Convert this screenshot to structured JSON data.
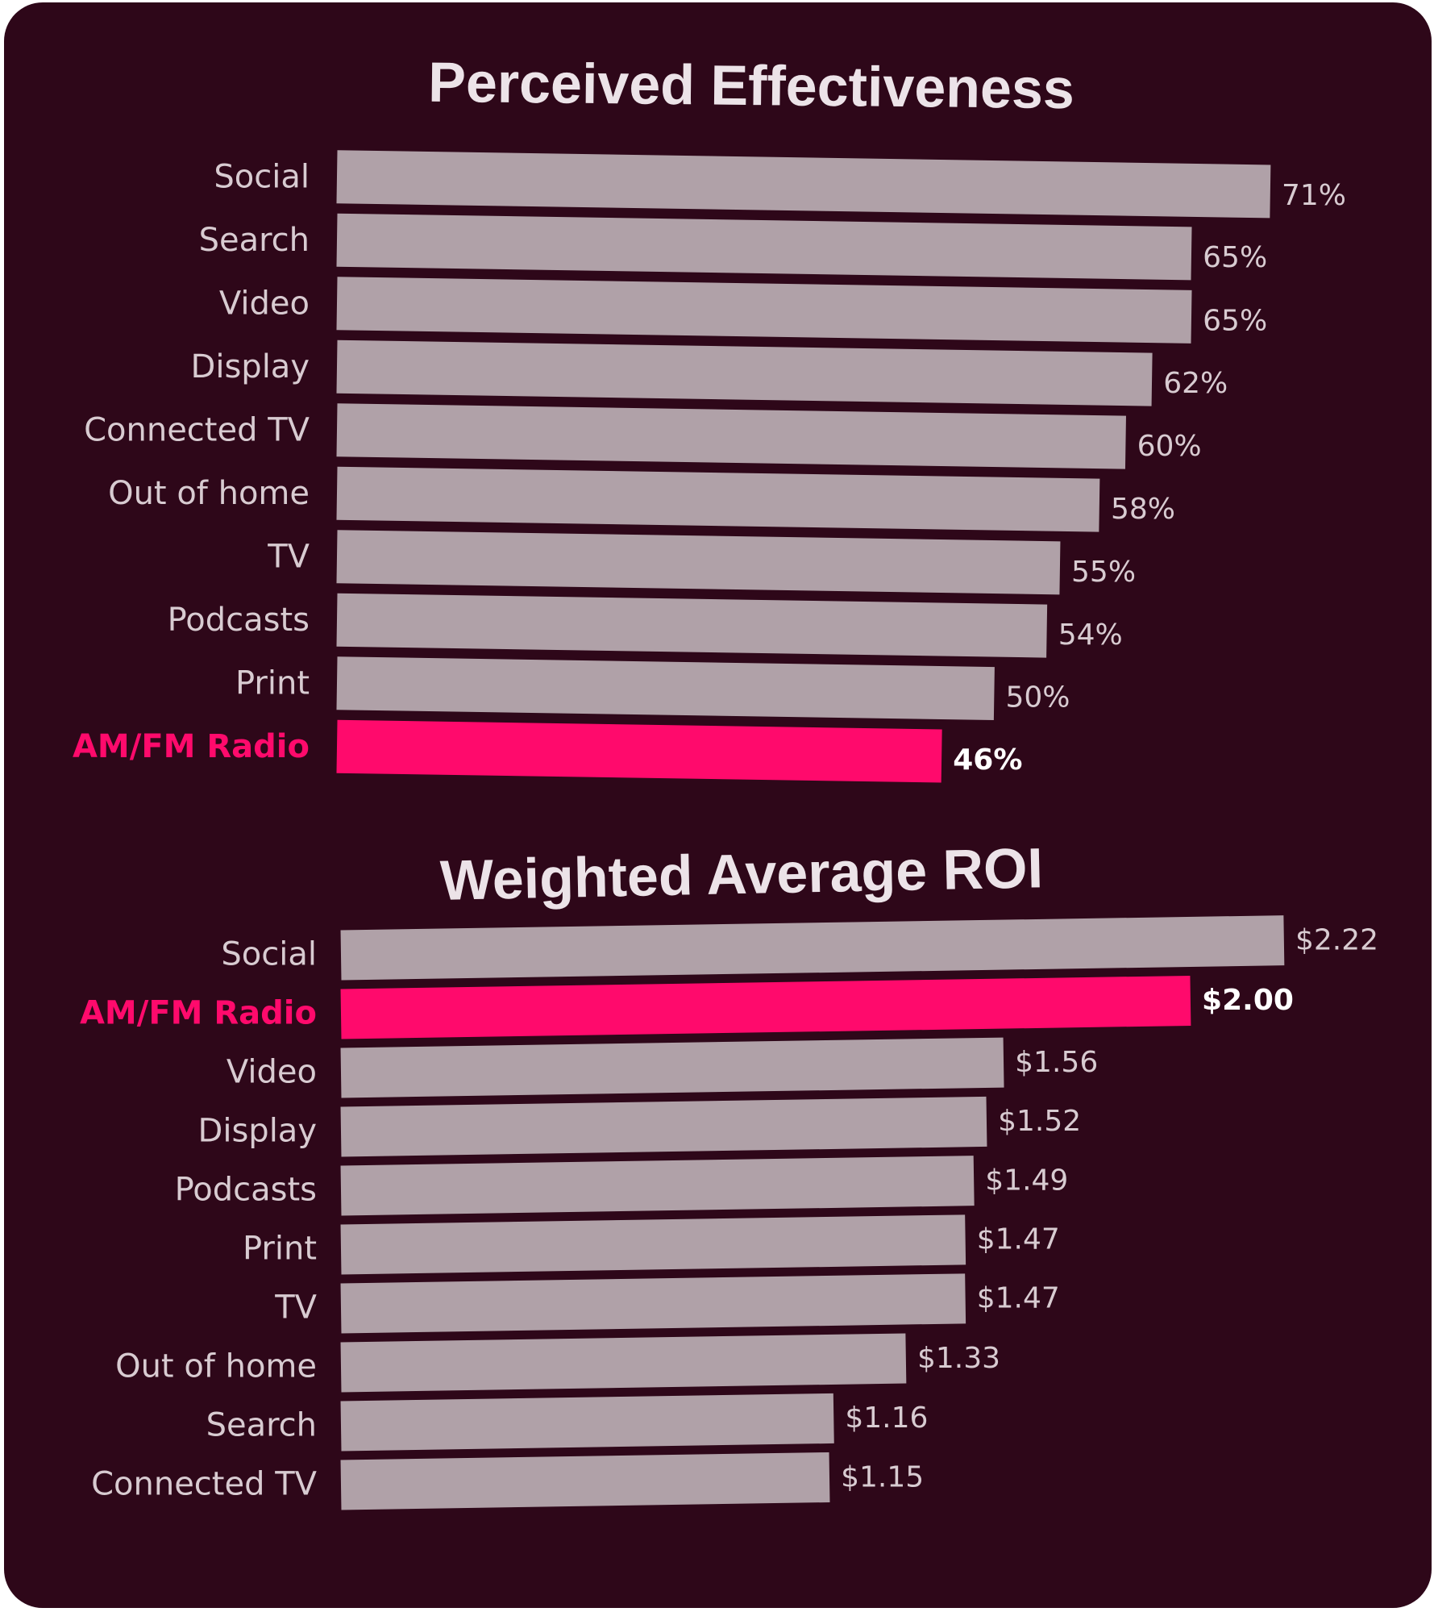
{
  "colors": {
    "background": "#2e0719",
    "bar": "#b0a1a8",
    "highlight": "#ff0a6c",
    "label": "#d8cbd1"
  },
  "chart_data": [
    {
      "type": "bar",
      "orientation": "horizontal",
      "title": "Perceived Effectiveness",
      "categories": [
        "Social",
        "Search",
        "Video",
        "Display",
        "Connected TV",
        "Out of home",
        "TV",
        "Podcasts",
        "Print",
        "AM/FM Radio"
      ],
      "values": [
        71,
        65,
        65,
        62,
        60,
        58,
        55,
        54,
        50,
        46
      ],
      "value_labels": [
        "71%",
        "65%",
        "65%",
        "62%",
        "60%",
        "58%",
        "55%",
        "54%",
        "50%",
        "46%"
      ],
      "highlight": "AM/FM Radio"
    },
    {
      "type": "bar",
      "orientation": "horizontal",
      "title": "Weighted Average ROI",
      "categories": [
        "Social",
        "AM/FM Radio",
        "Video",
        "Display",
        "Podcasts",
        "Print",
        "TV",
        "Out of home",
        "Search",
        "Connected TV"
      ],
      "values": [
        2.22,
        2.0,
        1.56,
        1.52,
        1.49,
        1.47,
        1.47,
        1.33,
        1.16,
        1.15
      ],
      "value_labels": [
        "$2.22",
        "$2.00",
        "$1.56",
        "$1.52",
        "$1.49",
        "$1.47",
        "$1.47",
        "$1.33",
        "$1.16",
        "$1.15"
      ],
      "highlight": "AM/FM Radio"
    }
  ]
}
